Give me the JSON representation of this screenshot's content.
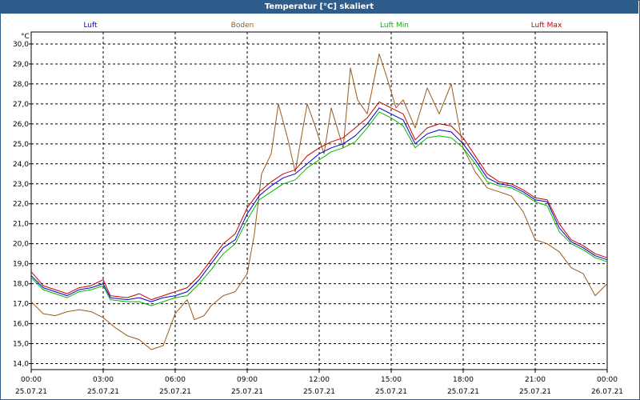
{
  "chart_data": {
    "type": "line",
    "title": "Temperatur [°C] skaliert",
    "ylabel": "°C",
    "ylim": [
      13.7,
      30.6
    ],
    "xlim": [
      0,
      24
    ],
    "grid": true,
    "legend_position": "top",
    "yticks": [
      "14,0",
      "15,0",
      "16,0",
      "17,0",
      "18,0",
      "19,0",
      "20,0",
      "21,0",
      "22,0",
      "23,0",
      "24,0",
      "25,0",
      "26,0",
      "27,0",
      "28,0",
      "29,0",
      "30,0"
    ],
    "xticks": [
      {
        "time": "00:00",
        "date": "25.07.21"
      },
      {
        "time": "03:00",
        "date": "25.07.21"
      },
      {
        "time": "06:00",
        "date": "25.07.21"
      },
      {
        "time": "09:00",
        "date": "25.07.21"
      },
      {
        "time": "12:00",
        "date": "25.07.21"
      },
      {
        "time": "15:00",
        "date": "25.07.21"
      },
      {
        "time": "18:00",
        "date": "25.07.21"
      },
      {
        "time": "21:00",
        "date": "25.07.21"
      },
      {
        "time": "00:00",
        "date": "26.07.21"
      }
    ],
    "series": [
      {
        "name": "Luft",
        "color": "#0000cc",
        "points": [
          [
            0,
            18.4
          ],
          [
            0.5,
            17.8
          ],
          [
            1,
            17.6
          ],
          [
            1.5,
            17.4
          ],
          [
            2,
            17.7
          ],
          [
            2.5,
            17.8
          ],
          [
            3,
            18.0
          ],
          [
            3.3,
            17.3
          ],
          [
            4,
            17.2
          ],
          [
            4.5,
            17.3
          ],
          [
            5,
            17.1
          ],
          [
            5.5,
            17.3
          ],
          [
            6,
            17.4
          ],
          [
            6.5,
            17.6
          ],
          [
            7,
            18.2
          ],
          [
            7.5,
            19.0
          ],
          [
            8,
            19.8
          ],
          [
            8.5,
            20.2
          ],
          [
            9,
            21.5
          ],
          [
            9.5,
            22.4
          ],
          [
            10,
            22.9
          ],
          [
            10.5,
            23.3
          ],
          [
            11,
            23.5
          ],
          [
            11.5,
            24.0
          ],
          [
            12,
            24.5
          ],
          [
            12.5,
            24.8
          ],
          [
            13,
            25.0
          ],
          [
            13.5,
            25.4
          ],
          [
            14,
            26.0
          ],
          [
            14.5,
            26.8
          ],
          [
            15,
            26.5
          ],
          [
            15.5,
            26.2
          ],
          [
            16,
            25.0
          ],
          [
            16.5,
            25.5
          ],
          [
            17,
            25.7
          ],
          [
            17.5,
            25.6
          ],
          [
            18,
            25.0
          ],
          [
            18.5,
            24.2
          ],
          [
            19,
            23.3
          ],
          [
            19.5,
            23.0
          ],
          [
            20,
            22.9
          ],
          [
            20.5,
            22.6
          ],
          [
            21,
            22.2
          ],
          [
            21.5,
            22.1
          ],
          [
            22,
            20.8
          ],
          [
            22.5,
            20.1
          ],
          [
            23,
            19.8
          ],
          [
            23.5,
            19.4
          ],
          [
            24,
            19.2
          ]
        ]
      },
      {
        "name": "Boden",
        "color": "#9a5a1a",
        "points": [
          [
            0,
            17.1
          ],
          [
            0.5,
            16.5
          ],
          [
            1,
            16.4
          ],
          [
            1.5,
            16.6
          ],
          [
            2,
            16.7
          ],
          [
            2.5,
            16.6
          ],
          [
            3,
            16.3
          ],
          [
            3.5,
            15.8
          ],
          [
            4,
            15.4
          ],
          [
            4.5,
            15.2
          ],
          [
            5,
            14.7
          ],
          [
            5.5,
            14.9
          ],
          [
            6,
            16.5
          ],
          [
            6.5,
            17.2
          ],
          [
            6.8,
            16.2
          ],
          [
            7.2,
            16.4
          ],
          [
            7.5,
            16.9
          ],
          [
            8,
            17.4
          ],
          [
            8.5,
            17.6
          ],
          [
            9,
            18.5
          ],
          [
            9.3,
            20.5
          ],
          [
            9.6,
            23.5
          ],
          [
            10,
            24.5
          ],
          [
            10.3,
            27.0
          ],
          [
            10.7,
            25.2
          ],
          [
            11,
            23.6
          ],
          [
            11.5,
            27.0
          ],
          [
            11.8,
            26.0
          ],
          [
            12.2,
            24.5
          ],
          [
            12.5,
            26.8
          ],
          [
            13,
            24.8
          ],
          [
            13.3,
            28.8
          ],
          [
            13.6,
            27.2
          ],
          [
            14,
            26.5
          ],
          [
            14.5,
            29.5
          ],
          [
            14.8,
            28.4
          ],
          [
            15.2,
            26.8
          ],
          [
            15.5,
            27.2
          ],
          [
            16,
            25.8
          ],
          [
            16.5,
            27.8
          ],
          [
            17,
            26.5
          ],
          [
            17.5,
            28.0
          ],
          [
            18,
            24.8
          ],
          [
            18.5,
            23.6
          ],
          [
            19,
            22.8
          ],
          [
            19.5,
            22.6
          ],
          [
            20,
            22.4
          ],
          [
            20.5,
            21.6
          ],
          [
            21,
            20.2
          ],
          [
            21.5,
            20.0
          ],
          [
            22,
            19.6
          ],
          [
            22.5,
            18.8
          ],
          [
            23,
            18.5
          ],
          [
            23.5,
            17.4
          ],
          [
            24,
            18.0
          ]
        ]
      },
      {
        "name": "Luft Min",
        "color": "#00bb00",
        "points": [
          [
            0,
            18.3
          ],
          [
            0.5,
            17.7
          ],
          [
            1,
            17.5
          ],
          [
            1.5,
            17.3
          ],
          [
            2,
            17.6
          ],
          [
            2.5,
            17.7
          ],
          [
            3,
            17.9
          ],
          [
            3.3,
            17.2
          ],
          [
            4,
            17.1
          ],
          [
            4.5,
            17.1
          ],
          [
            5,
            16.9
          ],
          [
            5.5,
            17.1
          ],
          [
            6,
            17.3
          ],
          [
            6.5,
            17.4
          ],
          [
            7,
            18.0
          ],
          [
            7.5,
            18.7
          ],
          [
            8,
            19.5
          ],
          [
            8.5,
            20.0
          ],
          [
            9,
            21.2
          ],
          [
            9.5,
            22.2
          ],
          [
            10,
            22.6
          ],
          [
            10.5,
            23.0
          ],
          [
            11,
            23.2
          ],
          [
            11.5,
            23.8
          ],
          [
            12,
            24.2
          ],
          [
            12.5,
            24.6
          ],
          [
            13,
            24.8
          ],
          [
            13.5,
            25.1
          ],
          [
            14,
            25.8
          ],
          [
            14.5,
            26.6
          ],
          [
            15,
            26.3
          ],
          [
            15.5,
            25.9
          ],
          [
            16,
            24.8
          ],
          [
            16.5,
            25.3
          ],
          [
            17,
            25.4
          ],
          [
            17.5,
            25.3
          ],
          [
            18,
            24.8
          ],
          [
            18.5,
            24.0
          ],
          [
            19,
            23.1
          ],
          [
            19.5,
            22.9
          ],
          [
            20,
            22.8
          ],
          [
            20.5,
            22.5
          ],
          [
            21,
            22.1
          ],
          [
            21.5,
            21.9
          ],
          [
            22,
            20.6
          ],
          [
            22.5,
            20.0
          ],
          [
            23,
            19.7
          ],
          [
            23.5,
            19.3
          ],
          [
            24,
            19.1
          ]
        ]
      },
      {
        "name": "Luft Max",
        "color": "#cc0000",
        "points": [
          [
            0,
            18.6
          ],
          [
            0.5,
            17.9
          ],
          [
            1,
            17.7
          ],
          [
            1.5,
            17.5
          ],
          [
            2,
            17.8
          ],
          [
            2.5,
            17.9
          ],
          [
            3,
            18.2
          ],
          [
            3.3,
            17.4
          ],
          [
            4,
            17.3
          ],
          [
            4.5,
            17.5
          ],
          [
            5,
            17.2
          ],
          [
            5.5,
            17.4
          ],
          [
            6,
            17.6
          ],
          [
            6.5,
            17.8
          ],
          [
            7,
            18.4
          ],
          [
            7.5,
            19.2
          ],
          [
            8,
            20.0
          ],
          [
            8.5,
            20.5
          ],
          [
            9,
            21.8
          ],
          [
            9.5,
            22.6
          ],
          [
            10,
            23.1
          ],
          [
            10.5,
            23.5
          ],
          [
            11,
            23.7
          ],
          [
            11.5,
            24.4
          ],
          [
            12,
            24.8
          ],
          [
            12.5,
            25.1
          ],
          [
            13,
            25.3
          ],
          [
            13.5,
            25.8
          ],
          [
            14,
            26.3
          ],
          [
            14.5,
            27.1
          ],
          [
            15,
            26.8
          ],
          [
            15.5,
            26.5
          ],
          [
            16,
            25.2
          ],
          [
            16.5,
            25.8
          ],
          [
            17,
            26.0
          ],
          [
            17.5,
            25.9
          ],
          [
            18,
            25.3
          ],
          [
            18.5,
            24.4
          ],
          [
            19,
            23.5
          ],
          [
            19.5,
            23.1
          ],
          [
            20,
            23.0
          ],
          [
            20.5,
            22.7
          ],
          [
            21,
            22.3
          ],
          [
            21.5,
            22.2
          ],
          [
            22,
            21.0
          ],
          [
            22.5,
            20.2
          ],
          [
            23,
            19.9
          ],
          [
            23.5,
            19.5
          ],
          [
            24,
            19.3
          ]
        ]
      }
    ]
  }
}
